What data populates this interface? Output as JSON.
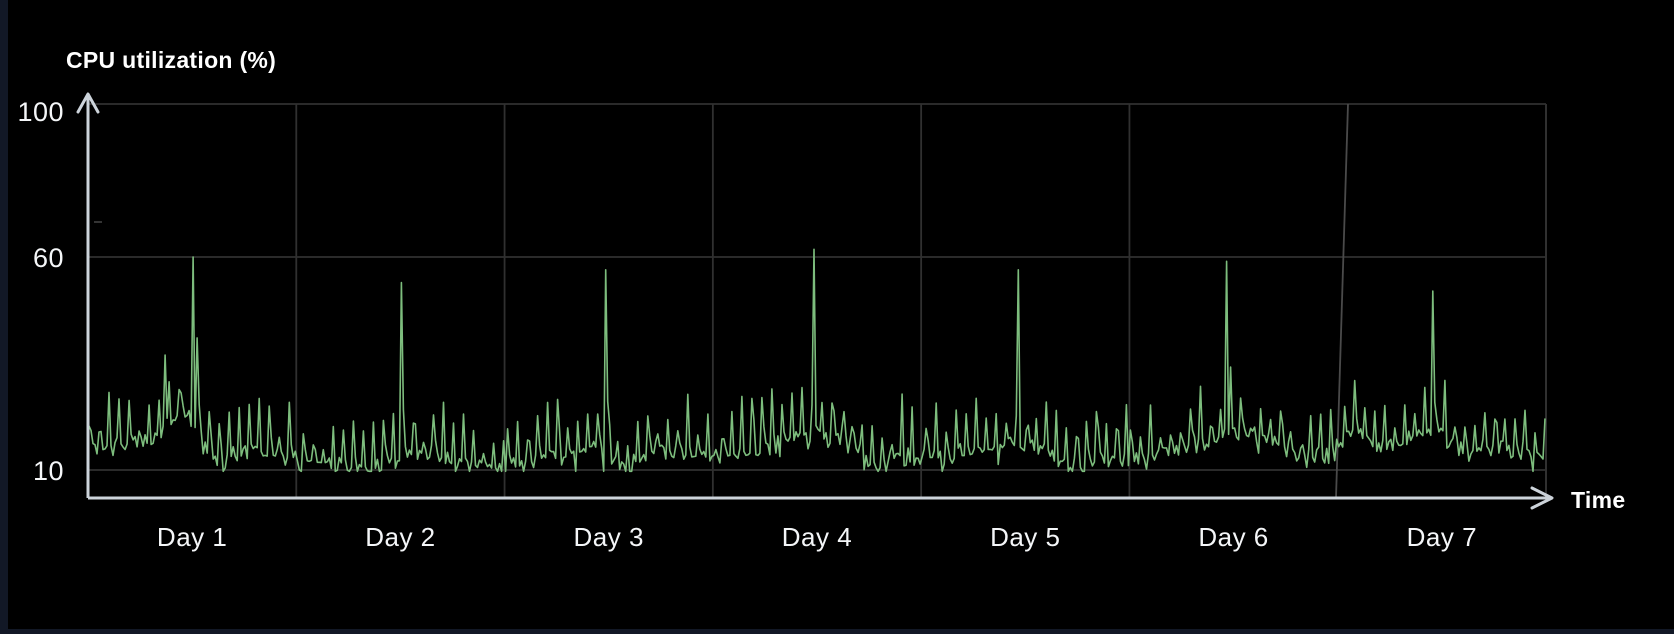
{
  "chart": {
    "title": "CPU utilization (%)",
    "y_axis": {
      "ticks": [
        "100",
        "60",
        "10"
      ],
      "arrow": "up"
    },
    "x_axis": {
      "label": "Time",
      "tick_labels": [
        "Day 1",
        "Day 2",
        "Day 3",
        "Day 4",
        "Day 5",
        "Day 6",
        "Day 7"
      ],
      "arrow": "right"
    },
    "colors": {
      "background": "#000000",
      "frame": "#121826",
      "line": "#7dbd7d",
      "grid": "#303030",
      "grid_light": "#4a4a4a",
      "axis": "#ccd3da",
      "text": "#ffffff"
    }
  },
  "chart_data": {
    "type": "line",
    "title": "CPU utilization (%)",
    "xlabel": "Time",
    "ylabel": "CPU utilization (%)",
    "categories": [
      "Day 1",
      "Day 2",
      "Day 3",
      "Day 4",
      "Day 5",
      "Day 6",
      "Day 7"
    ],
    "y_ticks": [
      100,
      60,
      10
    ],
    "y_gridlines": [
      100,
      60,
      10
    ],
    "ylim": [
      0,
      100
    ],
    "grid": "on",
    "legend": "none",
    "series": [
      {
        "name": "CPU utilization",
        "color": "#7dbd7d",
        "pattern": "noisy baseline 12-22% with frequent short spikes to 24-32% and one large narrow spike each day near midday",
        "baseline_mean_pct": 15,
        "baseline_offsets_per_day": [
          0.5,
          -1.5,
          -0.5,
          0,
          0.3,
          1.2,
          0.3
        ],
        "diurnal_amplitude_pct": 2.2,
        "noise_amplitude_pct": 3,
        "minor_spike_amplitude_pct": [
          3.5,
          14
        ],
        "min_pct": 9.7,
        "daily_major_spikes": [
          {
            "day": "Day 1",
            "t": 0.5,
            "value": 60
          },
          {
            "day": "Day 1",
            "t": 0.515,
            "value": 41
          },
          {
            "day": "Day 1",
            "t": 0.37,
            "value": 37
          },
          {
            "day": "Day 2",
            "t": 0.5,
            "value": 54
          },
          {
            "day": "Day 3",
            "t": 0.485,
            "value": 57
          },
          {
            "day": "Day 4",
            "t": 0.48,
            "value": 62
          },
          {
            "day": "Day 5",
            "t": 0.465,
            "value": 57
          },
          {
            "day": "Day 6",
            "t": 0.46,
            "value": 59
          },
          {
            "day": "Day 7",
            "t": 0.455,
            "value": 52
          }
        ],
        "dips": [
          {
            "day": "Day 1",
            "t": 0.62,
            "depth": 5.5,
            "width": 0.08
          },
          {
            "day": "Day 2",
            "t": 0.35,
            "depth": 3.0,
            "width": 0.12
          },
          {
            "day": "Day 3",
            "t": 0.58,
            "depth": 5.5,
            "width": 0.07
          },
          {
            "day": "Day 4",
            "t": 0.78,
            "depth": 4.5,
            "width": 0.07
          },
          {
            "day": "Day 5",
            "t": 0.7,
            "depth": 4.5,
            "width": 0.07
          },
          {
            "day": "Day 6",
            "t": 0.84,
            "depth": 3.0,
            "width": 0.06
          },
          {
            "day": "Day 7",
            "t": 0.6,
            "depth": 3.5,
            "width": 0.05
          }
        ],
        "bumps": [
          {
            "day": "Day 1",
            "t": 0.44,
            "amp": 5,
            "width": 0.06
          },
          {
            "day": "Day 7",
            "t": 0.08,
            "amp": 5,
            "width": 0.05
          }
        ]
      }
    ],
    "render": {
      "seed": 20250101,
      "points_per_day": 104
    }
  }
}
